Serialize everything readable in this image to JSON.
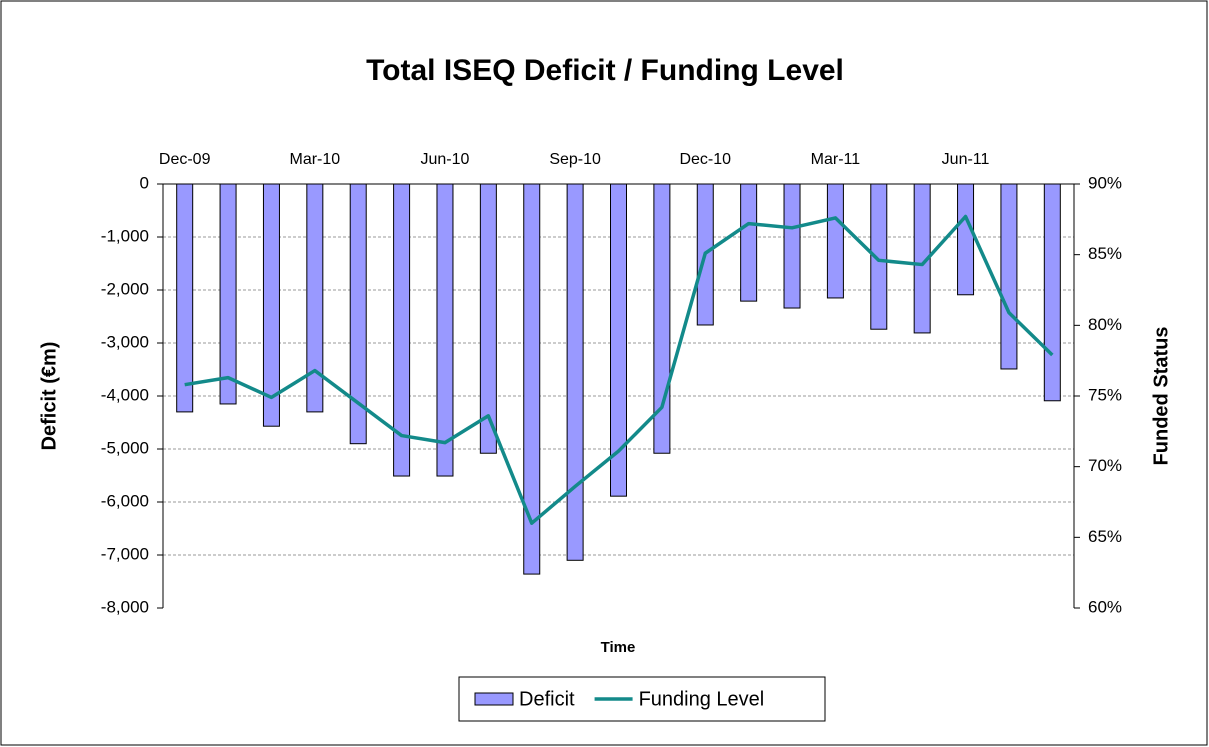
{
  "chart_data": {
    "type": "bar_line",
    "title": "Total ISEQ Deficit / Funding Level",
    "x_label": "Time",
    "y_label": "Deficit  (€m)",
    "y2_label": "Funded Status",
    "categories": [
      "Dec-09",
      null,
      null,
      "Mar-10",
      null,
      null,
      "Jun-10",
      null,
      null,
      "Sep-10",
      null,
      null,
      "Dec-10",
      null,
      null,
      "Mar-11",
      null,
      null,
      "Jun-11",
      null,
      null
    ],
    "series": [
      {
        "name": "Deficit",
        "type": "bar",
        "color": "#9999ff",
        "values": [
          -4300,
          -4150,
          -4570,
          -4300,
          -4900,
          -5510,
          -5510,
          -5080,
          -7360,
          -7100,
          -5890,
          -5080,
          -2660,
          -2210,
          -2340,
          -2150,
          -2740,
          -2810,
          -2090,
          -3490,
          -4090
        ]
      },
      {
        "name": "Funding Level",
        "type": "line",
        "axis": "y2",
        "color": "#138a8a",
        "values": [
          75.8,
          76.3,
          74.9,
          76.8,
          74.5,
          72.2,
          71.7,
          73.6,
          66.0,
          68.6,
          71.1,
          74.2,
          85.1,
          87.2,
          86.9,
          87.6,
          84.6,
          84.3,
          87.7,
          80.9,
          77.9
        ]
      }
    ],
    "ylim": [
      -8000,
      0
    ],
    "yticks": [
      {
        "value": -8000,
        "label": "-8,000"
      },
      {
        "value": -7000,
        "label": "-7,000"
      },
      {
        "value": -6000,
        "label": "-6,000"
      },
      {
        "value": -5000,
        "label": "-5,000"
      },
      {
        "value": -4000,
        "label": "-4,000"
      },
      {
        "value": -3000,
        "label": "-3,000"
      },
      {
        "value": -2000,
        "label": "-2,000"
      },
      {
        "value": -1000,
        "label": "-1,000"
      },
      0
    ],
    "y2lim": [
      60,
      90
    ],
    "y2ticks": [
      {
        "value": 60,
        "label": "60%"
      },
      {
        "value": 65,
        "label": "65%"
      },
      {
        "value": 70,
        "label": "70%"
      },
      {
        "value": 75,
        "label": "75%"
      },
      {
        "value": 80,
        "label": "80%"
      },
      {
        "value": 85,
        "label": "85%"
      },
      {
        "value": 90,
        "label": "90%"
      }
    ],
    "grid": true,
    "legend": "bottom"
  }
}
